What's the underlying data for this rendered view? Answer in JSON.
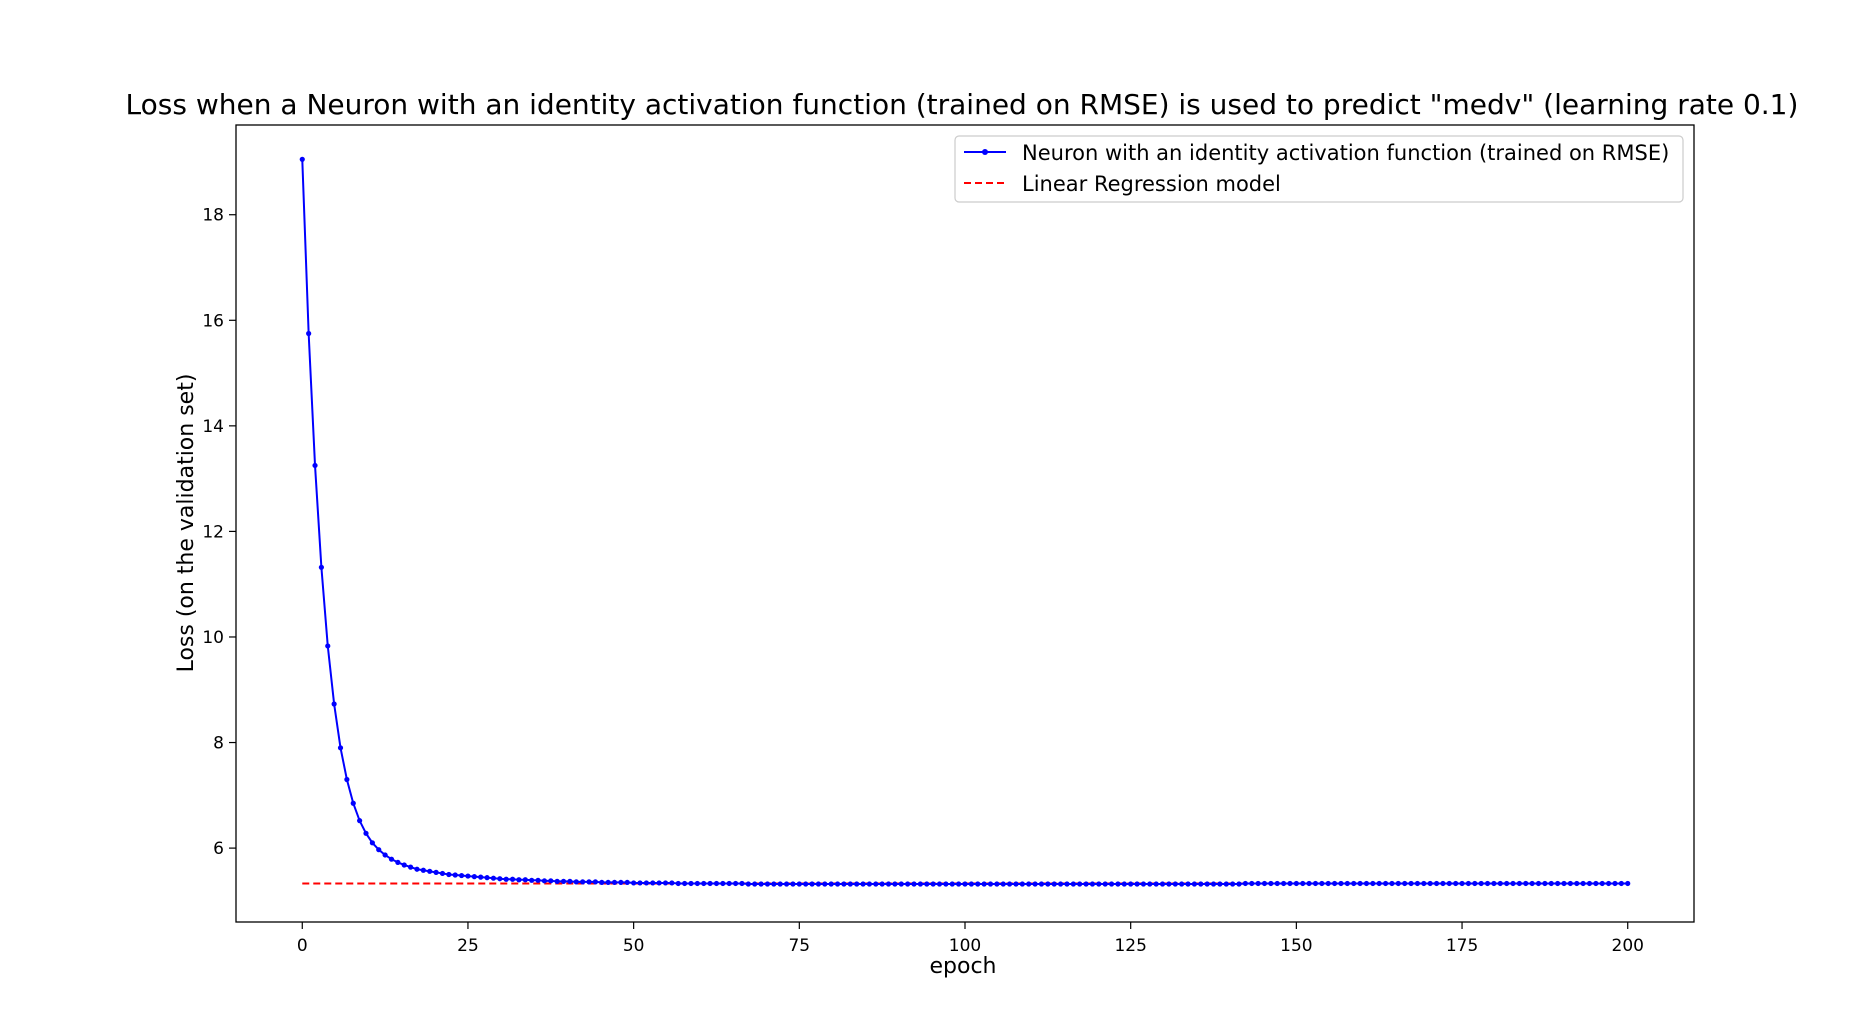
{
  "chart_data": {
    "type": "line",
    "title": "Loss when a Neuron with an identity activation function (trained on RMSE) is used to predict \"medv\" (learning rate 0.1)",
    "xlabel": "epoch",
    "ylabel": "Loss (on the validation set)",
    "xlim": [
      -10,
      210
    ],
    "ylim": [
      4.6,
      19.7
    ],
    "xticks": [
      0,
      25,
      50,
      75,
      100,
      125,
      150,
      175,
      200
    ],
    "yticks": [
      6,
      8,
      10,
      12,
      14,
      16,
      18
    ],
    "grid": false,
    "legend_position": "top-right",
    "series": [
      {
        "name": "Neuron with an identity activation function (trained on RMSE)",
        "color": "#0000ff",
        "style": "solid-with-dot-markers",
        "x_start": 0,
        "x_end": 200,
        "values": [
          19.05,
          15.75,
          13.25,
          11.32,
          9.83,
          8.73,
          7.9,
          7.3,
          6.85,
          6.52,
          6.28,
          6.1,
          5.97,
          5.87,
          5.79,
          5.73,
          5.68,
          5.64,
          5.6,
          5.58,
          5.56,
          5.54,
          5.52,
          5.5,
          5.49,
          5.48,
          5.47,
          5.46,
          5.45,
          5.44,
          5.43,
          5.42,
          5.41,
          5.41,
          5.4,
          5.4,
          5.39,
          5.39,
          5.38,
          5.38,
          5.37,
          5.37,
          5.37,
          5.36,
          5.36,
          5.36,
          5.36,
          5.35,
          5.35,
          5.35,
          5.35,
          5.35,
          5.34,
          5.34,
          5.34,
          5.34,
          5.34,
          5.34,
          5.34,
          5.33,
          5.33,
          5.33,
          5.33,
          5.33,
          5.33,
          5.33,
          5.33,
          5.33,
          5.33,
          5.33,
          5.32,
          5.32,
          5.32,
          5.32,
          5.32,
          5.32,
          5.32,
          5.32,
          5.32,
          5.32,
          5.32,
          5.32,
          5.32,
          5.32,
          5.32,
          5.32,
          5.32,
          5.32,
          5.32,
          5.32,
          5.32,
          5.32,
          5.32,
          5.32,
          5.32,
          5.32,
          5.32,
          5.32,
          5.32,
          5.32,
          5.32,
          5.32,
          5.32,
          5.32,
          5.32,
          5.32,
          5.32,
          5.32,
          5.32,
          5.32,
          5.32,
          5.32,
          5.32,
          5.32,
          5.32,
          5.32,
          5.32,
          5.32,
          5.32,
          5.32,
          5.32,
          5.32,
          5.32,
          5.32,
          5.32,
          5.32,
          5.32,
          5.32,
          5.32,
          5.32,
          5.32,
          5.32,
          5.32,
          5.32,
          5.32,
          5.32,
          5.32,
          5.32,
          5.32,
          5.32,
          5.32,
          5.32,
          5.32,
          5.32,
          5.32,
          5.32,
          5.32,
          5.32,
          5.33,
          5.33,
          5.33,
          5.33,
          5.33,
          5.33,
          5.33,
          5.33,
          5.33,
          5.33,
          5.33,
          5.33,
          5.33,
          5.33,
          5.33,
          5.33,
          5.33,
          5.33,
          5.33,
          5.33,
          5.33,
          5.33,
          5.33,
          5.33,
          5.33,
          5.33,
          5.33,
          5.33,
          5.33,
          5.33,
          5.33,
          5.33,
          5.33,
          5.33,
          5.33,
          5.33,
          5.33,
          5.33,
          5.33,
          5.33,
          5.33,
          5.33,
          5.33,
          5.33,
          5.33,
          5.33,
          5.33,
          5.33,
          5.33,
          5.33,
          5.33,
          5.33,
          5.33,
          5.33,
          5.33,
          5.33,
          5.33,
          5.33,
          5.33,
          5.33,
          5.33
        ]
      },
      {
        "name": "Linear Regression model",
        "color": "#ff0000",
        "style": "dashed",
        "x": [
          0,
          200
        ],
        "values": [
          5.33,
          5.33
        ]
      }
    ]
  }
}
